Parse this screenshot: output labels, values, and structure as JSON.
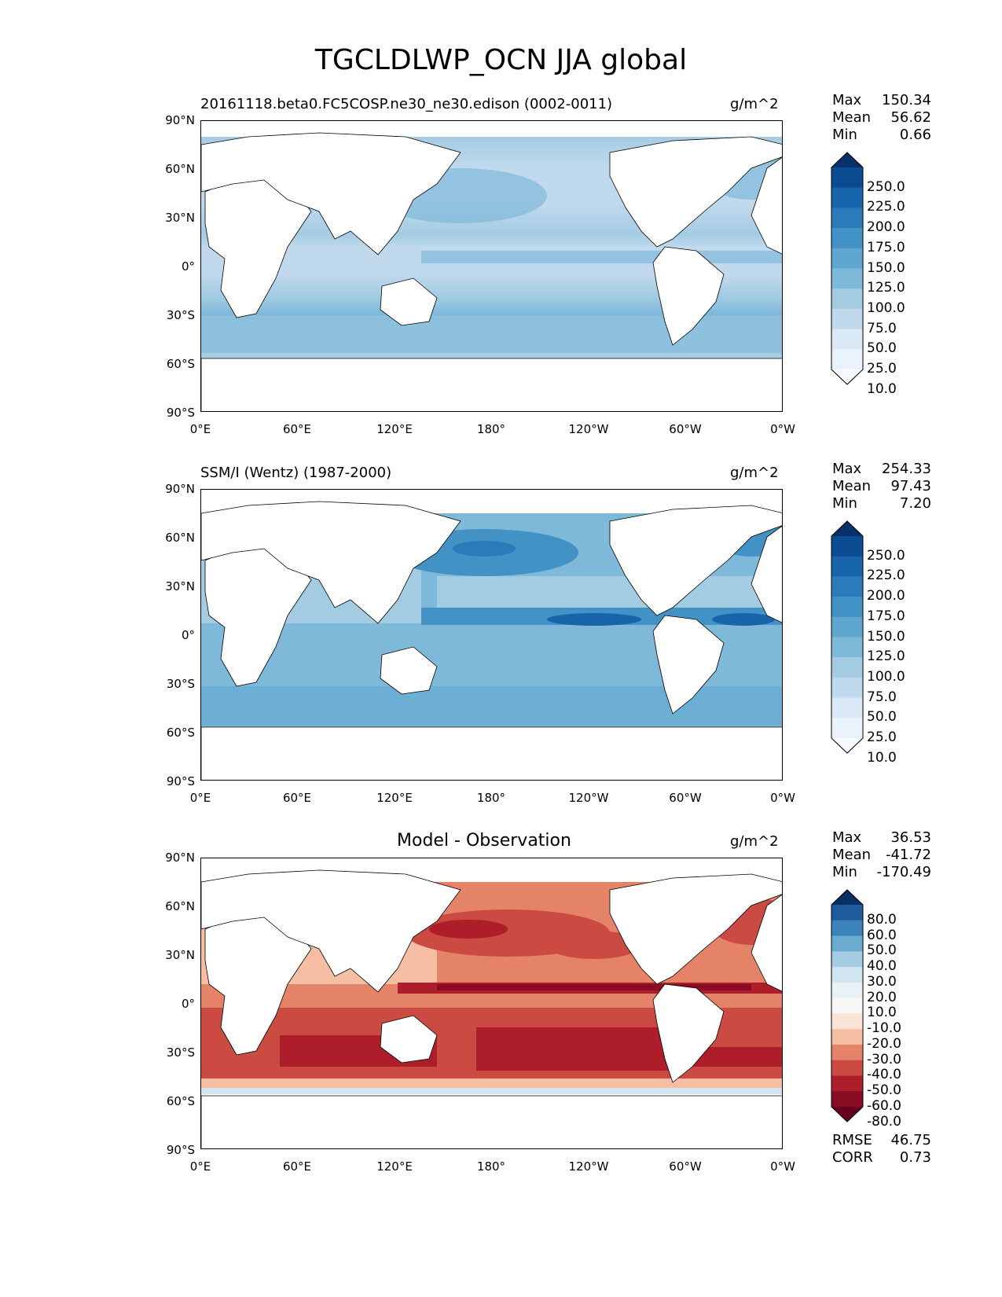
{
  "figure_title": "TGCLDLWP_OCN JJA global",
  "y_ticks": [
    "90°N",
    "60°N",
    "30°N",
    "0°",
    "30°S",
    "60°S",
    "90°S"
  ],
  "x_ticks": [
    "0°E",
    "60°E",
    "120°E",
    "180°",
    "120°W",
    "60°W",
    "0°W"
  ],
  "panels": [
    {
      "title": "20161118.beta0.FC5COSP.ne30_ne30.edison (0002-0011)",
      "units": "g/m^2",
      "stats": {
        "max_label": "Max",
        "max": "150.34",
        "mean_label": "Mean",
        "mean": "56.62",
        "min_label": "Min",
        "min": "0.66"
      },
      "colorbar_labels": [
        "250.0",
        "225.0",
        "200.0",
        "175.0",
        "150.0",
        "125.0",
        "100.0",
        "75.0",
        "50.0",
        "25.0",
        "10.0"
      ],
      "colorbar_colors": [
        "#08306b",
        "#0b4b92",
        "#1764ab",
        "#2b7bba",
        "#4292c6",
        "#5fa6d1",
        "#7fb9da",
        "#a3cce3",
        "#c1d9ed",
        "#dbe9f6",
        "#eaf2fb",
        "#f7fbff"
      ]
    },
    {
      "title": "SSM/I (Wentz) (1987-2000)",
      "units": "g/m^2",
      "stats": {
        "max_label": "Max",
        "max": "254.33",
        "mean_label": "Mean",
        "mean": "97.43",
        "min_label": "Min",
        "min": "7.20"
      },
      "colorbar_labels": [
        "250.0",
        "225.0",
        "200.0",
        "175.0",
        "150.0",
        "125.0",
        "100.0",
        "75.0",
        "50.0",
        "25.0",
        "10.0"
      ],
      "colorbar_colors": [
        "#08306b",
        "#0b4b92",
        "#1764ab",
        "#2b7bba",
        "#4292c6",
        "#5fa6d1",
        "#7fb9da",
        "#a3cce3",
        "#c1d9ed",
        "#dbe9f6",
        "#eaf2fb",
        "#f7fbff"
      ]
    },
    {
      "title": "Model - Observation",
      "units": "g/m^2",
      "stats": {
        "max_label": "Max",
        "max": "36.53",
        "mean_label": "Mean",
        "mean": "-41.72",
        "min_label": "Min",
        "min": "-170.49"
      },
      "extra_stats": {
        "rmse_label": "RMSE",
        "rmse": "46.75",
        "corr_label": "CORR",
        "corr": "0.73"
      },
      "colorbar_labels": [
        "80.0",
        "60.0",
        "50.0",
        "40.0",
        "30.0",
        "20.0",
        "10.0",
        "-10.0",
        "-20.0",
        "-30.0",
        "-40.0",
        "-50.0",
        "-60.0",
        "-80.0"
      ],
      "colorbar_colors": [
        "#053061",
        "#1e5a9c",
        "#3a84bb",
        "#6aabd0",
        "#a4cce3",
        "#d1e5f0",
        "#eaf1f6",
        "#f7f7f7",
        "#fbe3d5",
        "#f6bea2",
        "#e58368",
        "#cb4a42",
        "#ad1d2a",
        "#8a0b24",
        "#67001f"
      ]
    }
  ]
}
